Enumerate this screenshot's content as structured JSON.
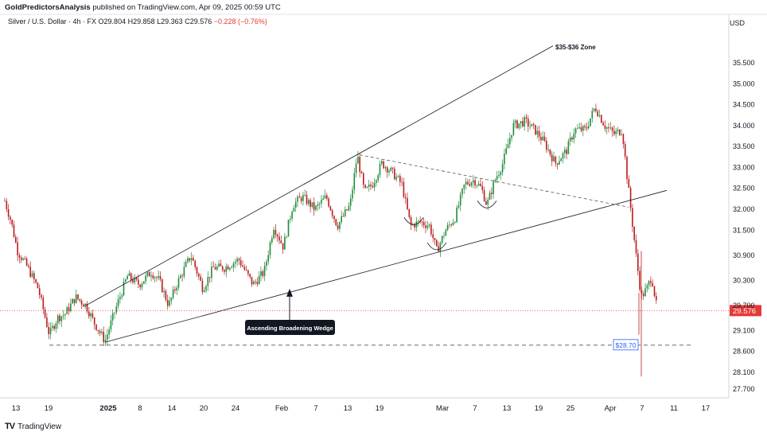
{
  "header": {
    "author": "GoldPredictorsAnalysis",
    "published_text": "published on TradingView.com, Apr 09, 2025 00:59 UTC"
  },
  "ohlc_bar": {
    "symbol": "Silver / U.S. Dollar · 4h · FX",
    "open": "O29.804",
    "high": "H29.858",
    "low": "L29.363",
    "close": "C29.576",
    "change": "−0.228 (−0.76%)"
  },
  "currency_label": "USD",
  "brand": {
    "name": "TradingView"
  },
  "colors": {
    "up": "#26a69a",
    "up_body": "#1e8c3a",
    "down": "#b71c1c",
    "price_line": "#e53935",
    "label_bg": "#e53935",
    "support_label": "#2962ff"
  },
  "chart_data": {
    "type": "candlestick",
    "timeframe": "4h",
    "y_ticks": [
      35.5,
      35.0,
      34.5,
      34.0,
      33.5,
      33.0,
      32.5,
      32.0,
      31.5,
      30.9,
      30.3,
      29.7,
      29.1,
      28.6,
      28.1,
      27.7
    ],
    "y_tick_labels": [
      "35.500",
      "35.000",
      "34.500",
      "34.000",
      "33.500",
      "33.000",
      "32.500",
      "32.000",
      "31.500",
      "30.900",
      "30.300",
      "29.700",
      "29.100",
      "28.600",
      "28.100",
      "27.700"
    ],
    "x_tick_labels": [
      "13",
      "19",
      "2025",
      "8",
      "14",
      "20",
      "24",
      "Feb",
      "7",
      "13",
      "19",
      "Mar",
      "7",
      "13",
      "19",
      "25",
      "Apr",
      "7",
      "11",
      "17"
    ],
    "last_price": 29.576,
    "last_price_label": "29.576",
    "support_level": 28.7,
    "support_label": "$28.70",
    "annotations": [
      {
        "text": "$35-$36 Zone"
      },
      {
        "text": "Ascending Broadening Wedge"
      }
    ],
    "key_points": [
      {
        "date": "Dec 13",
        "price": 32.2
      },
      {
        "date": "Dec 19",
        "price": 28.85
      },
      {
        "date": "Dec 30",
        "price": 28.75
      },
      {
        "date": "Jan 20",
        "price": 30.2
      },
      {
        "date": "Feb 7",
        "price": 32.5
      },
      {
        "date": "Feb 14",
        "price": 33.35
      },
      {
        "date": "Feb 25",
        "price": 31.5
      },
      {
        "date": "Feb 28",
        "price": 30.95
      },
      {
        "date": "Mar 7",
        "price": 32.6
      },
      {
        "date": "Mar 18",
        "price": 34.1
      },
      {
        "date": "Mar 28",
        "price": 34.6
      },
      {
        "date": "Apr 3",
        "price": 32.0
      },
      {
        "date": "Apr 7",
        "price": 28.0
      },
      {
        "date": "Apr 8",
        "price": 29.576
      }
    ]
  }
}
